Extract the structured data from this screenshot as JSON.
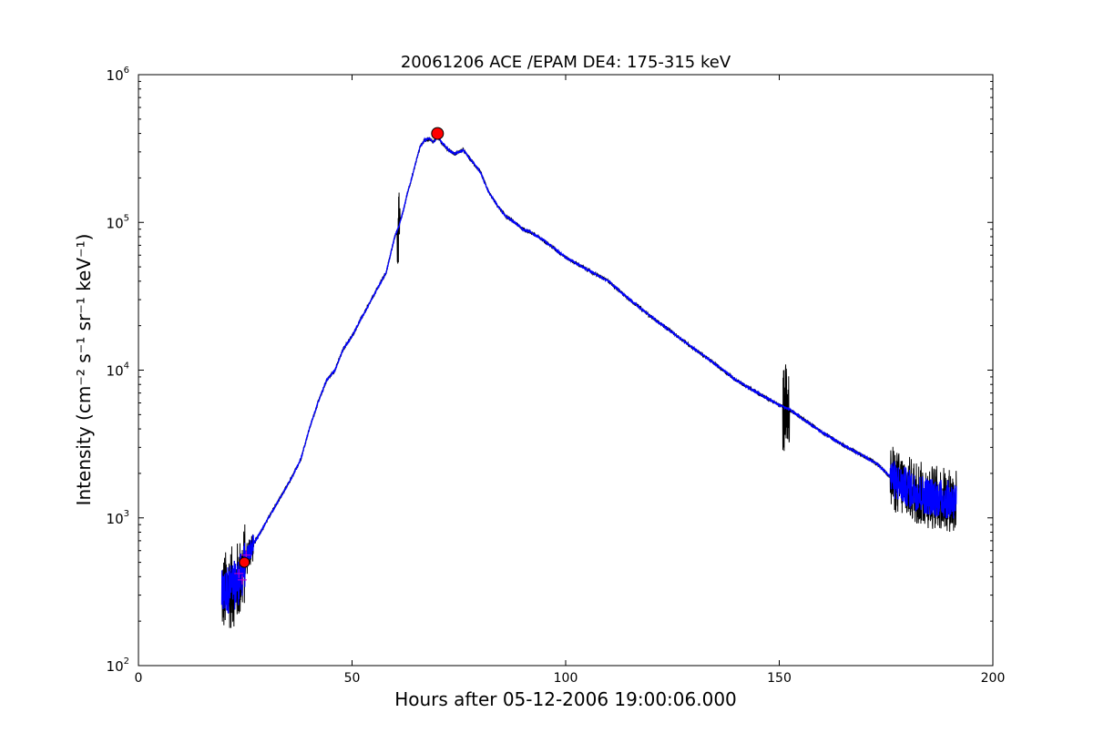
{
  "chart_data": {
    "type": "line",
    "title": "20061206 ACE /EPAM DE4: 175-315 keV",
    "xlabel": "Hours after 05-12-2006 19:00:06.000",
    "ylabel": "Intensity (cm⁻² s⁻¹ sr⁻¹ keV⁻¹)",
    "xlim": [
      0,
      200
    ],
    "ylim": [
      100,
      1000000
    ],
    "yscale": "log",
    "grid": false,
    "x_ticks": [
      0,
      50,
      100,
      150,
      200
    ],
    "y_ticks": [
      {
        "base": "10",
        "exp": "2",
        "value": 100
      },
      {
        "base": "10",
        "exp": "3",
        "value": 1000
      },
      {
        "base": "10",
        "exp": "4",
        "value": 10000
      },
      {
        "base": "10",
        "exp": "5",
        "value": 100000
      },
      {
        "base": "10",
        "exp": "6",
        "value": 1000000
      }
    ],
    "colors": {
      "raw": "#000000",
      "smoothed": "#0000ff",
      "marker": "#ff0000",
      "cross": "#cc00cc"
    },
    "series": [
      {
        "values_description_omitted": true,
        "x": [
          19.5,
          21,
          22,
          23,
          24,
          25,
          26,
          28,
          30,
          32,
          34,
          36,
          38,
          40,
          42,
          44,
          46,
          48,
          50,
          52,
          54,
          56,
          58,
          60,
          61,
          62,
          63,
          64,
          65,
          66,
          67,
          68,
          69,
          70,
          72,
          74,
          75,
          76,
          78,
          80,
          82,
          84,
          86,
          88,
          90,
          92,
          95,
          100,
          105,
          110,
          115,
          120,
          125,
          130,
          135,
          140,
          145,
          150,
          152,
          155,
          160,
          165,
          170,
          173,
          176,
          178,
          180,
          182,
          185,
          188,
          191.5
        ],
        "values": [
          300,
          330,
          340,
          360,
          400,
          500,
          600,
          750,
          950,
          1200,
          1500,
          1900,
          2500,
          4000,
          6000,
          8500,
          10000,
          14000,
          17000,
          22000,
          28000,
          36000,
          46000,
          80000,
          95000,
          120000,
          160000,
          200000,
          260000,
          330000,
          360000,
          370000,
          350000,
          380000,
          320000,
          290000,
          300000,
          310000,
          260000,
          220000,
          160000,
          130000,
          110000,
          100000,
          90000,
          85000,
          75000,
          58000,
          48000,
          40000,
          30000,
          23000,
          18000,
          14000,
          11000,
          8500,
          7000,
          5800,
          5500,
          4800,
          3800,
          3100,
          2600,
          2300,
          1900,
          1700,
          1600,
          1500,
          1400,
          1350,
          1300
        ]
      }
    ],
    "markers": [
      {
        "label": "onset",
        "x": 24.8,
        "y": 500
      },
      {
        "label": "peak",
        "x": 70,
        "y": 400000
      }
    ]
  }
}
